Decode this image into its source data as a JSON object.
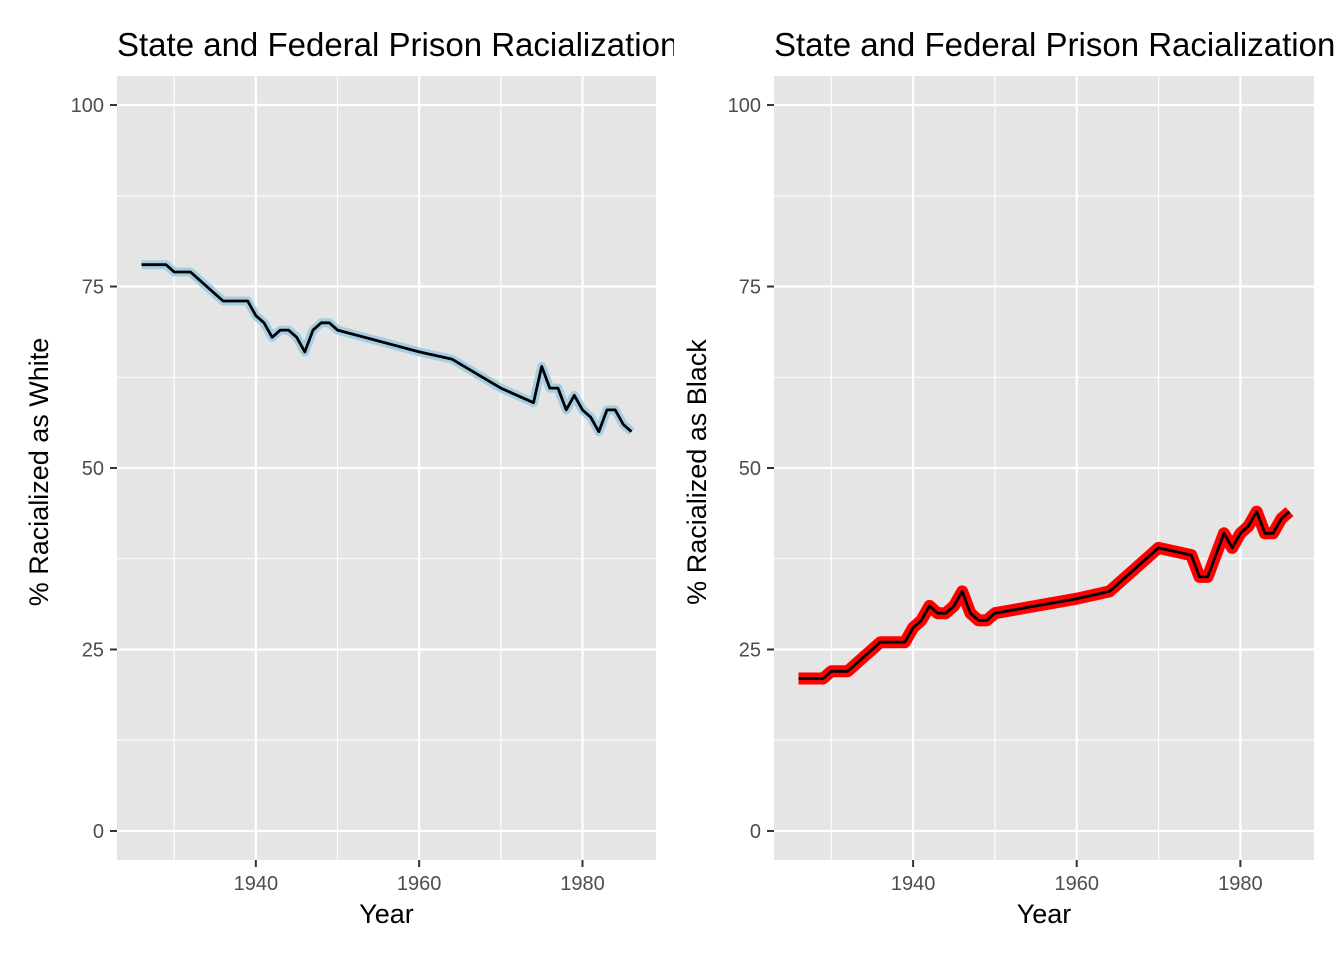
{
  "chart_data": [
    {
      "type": "line",
      "title": "State and Federal Prison Racialization",
      "xlabel": "Year",
      "ylabel": "% Racialized as White",
      "xlim": [
        1923,
        1989
      ],
      "ylim": [
        -4,
        104
      ],
      "x_ticks": [
        1940,
        1960,
        1980
      ],
      "x_tick_labels": [
        "1940",
        "1960",
        "1980"
      ],
      "y_ticks": [
        0,
        25,
        50,
        75,
        100
      ],
      "y_tick_labels": [
        "0",
        "25",
        "50",
        "75",
        "100"
      ],
      "grid": true,
      "background": "#e5e5e5",
      "series": [
        {
          "color": "#000000",
          "halo_color": "#a6cee3",
          "x": [
            1926,
            1927,
            1928,
            1929,
            1930,
            1931,
            1932,
            1933,
            1934,
            1935,
            1936,
            1937,
            1938,
            1939,
            1940,
            1941,
            1942,
            1943,
            1944,
            1945,
            1946,
            1947,
            1948,
            1949,
            1950,
            1960,
            1964,
            1970,
            1974,
            1975,
            1976,
            1977,
            1978,
            1979,
            1980,
            1981,
            1982,
            1983,
            1984,
            1985,
            1986
          ],
          "y": [
            78,
            78,
            78,
            78,
            77,
            77,
            77,
            76,
            75,
            74,
            73,
            73,
            73,
            73,
            71,
            70,
            68,
            69,
            69,
            68,
            66,
            69,
            70,
            70,
            69,
            66,
            65,
            61,
            59,
            64,
            61,
            61,
            58,
            60,
            58,
            57,
            55,
            58,
            58,
            56,
            55
          ]
        }
      ]
    },
    {
      "type": "line",
      "title": "State and Federal Prison Racialization",
      "xlabel": "Year",
      "ylabel": "% Racialized as Black",
      "xlim": [
        1923,
        1989
      ],
      "ylim": [
        -4,
        104
      ],
      "x_ticks": [
        1940,
        1960,
        1980
      ],
      "x_tick_labels": [
        "1940",
        "1960",
        "1980"
      ],
      "y_ticks": [
        0,
        25,
        50,
        75,
        100
      ],
      "y_tick_labels": [
        "0",
        "25",
        "50",
        "75",
        "100"
      ],
      "grid": true,
      "background": "#e5e5e5",
      "series": [
        {
          "color": "#000000",
          "halo_color": "#ff0000",
          "x": [
            1926,
            1927,
            1928,
            1929,
            1930,
            1931,
            1932,
            1933,
            1934,
            1935,
            1936,
            1937,
            1938,
            1939,
            1940,
            1941,
            1942,
            1943,
            1944,
            1945,
            1946,
            1947,
            1948,
            1949,
            1950,
            1960,
            1964,
            1970,
            1974,
            1975,
            1976,
            1977,
            1978,
            1979,
            1980,
            1981,
            1982,
            1983,
            1984,
            1985,
            1986
          ],
          "y": [
            21,
            21,
            21,
            21,
            22,
            22,
            22,
            23,
            24,
            25,
            26,
            26,
            26,
            26,
            28,
            29,
            31,
            30,
            30,
            31,
            33,
            30,
            29,
            29,
            30,
            32,
            33,
            39,
            38,
            35,
            35,
            38,
            41,
            39,
            41,
            42,
            44,
            41,
            41,
            43,
            44
          ]
        }
      ]
    }
  ]
}
